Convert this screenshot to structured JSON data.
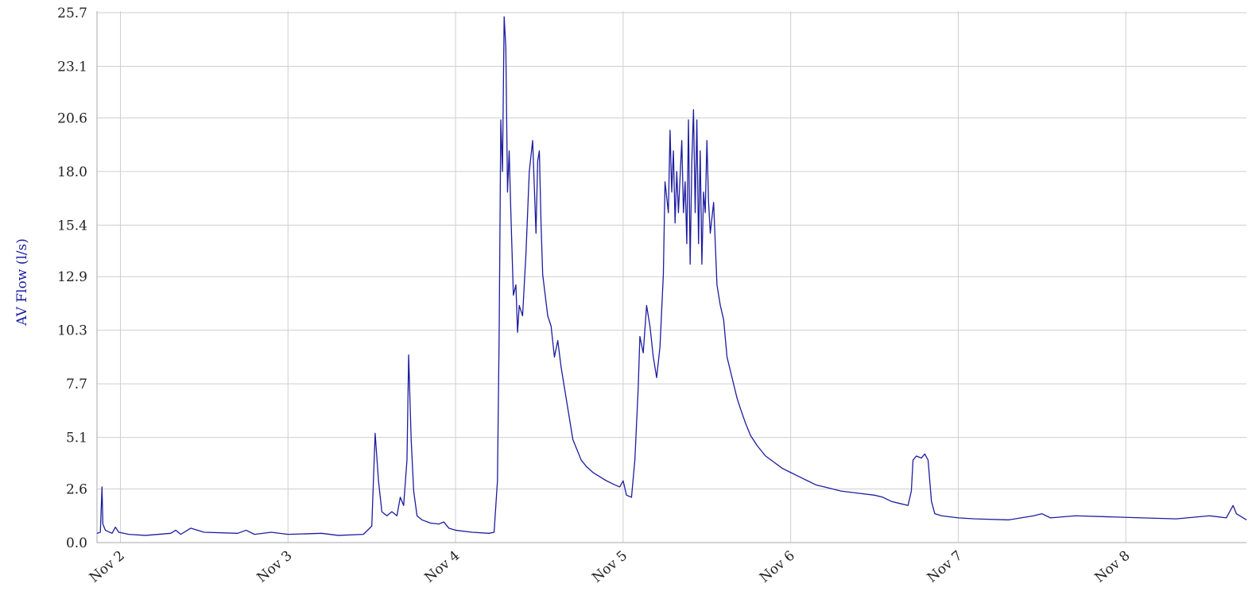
{
  "chart_data": {
    "type": "line",
    "ylabel": "AV Flow (l/s)",
    "xlabel": "",
    "title": "",
    "grid": true,
    "ylim": [
      0.0,
      25.7
    ],
    "xlim": [
      1.86,
      8.72
    ],
    "yticks": [
      "0.0",
      "2.6",
      "5.1",
      "7.7",
      "10.3",
      "12.9",
      "15.4",
      "18.0",
      "20.6",
      "23.1",
      "25.7"
    ],
    "xticks": [
      {
        "value": 2,
        "label": "Nov 2"
      },
      {
        "value": 3,
        "label": "Nov 3"
      },
      {
        "value": 4,
        "label": "Nov 4"
      },
      {
        "value": 5,
        "label": "Nov 5"
      },
      {
        "value": 6,
        "label": "Nov 6"
      },
      {
        "value": 7,
        "label": "Nov 7"
      },
      {
        "value": 8,
        "label": "Nov 8"
      }
    ],
    "series": [
      {
        "color": "#1c1ca0",
        "points": [
          [
            1.86,
            0.45
          ],
          [
            1.88,
            0.5
          ],
          [
            1.89,
            2.7
          ],
          [
            1.895,
            0.9
          ],
          [
            1.91,
            0.6
          ],
          [
            1.95,
            0.45
          ],
          [
            1.97,
            0.75
          ],
          [
            1.99,
            0.5
          ],
          [
            2.05,
            0.4
          ],
          [
            2.15,
            0.35
          ],
          [
            2.3,
            0.45
          ],
          [
            2.33,
            0.6
          ],
          [
            2.36,
            0.4
          ],
          [
            2.42,
            0.7
          ],
          [
            2.5,
            0.5
          ],
          [
            2.7,
            0.45
          ],
          [
            2.75,
            0.6
          ],
          [
            2.8,
            0.4
          ],
          [
            2.9,
            0.5
          ],
          [
            3.0,
            0.4
          ],
          [
            3.2,
            0.45
          ],
          [
            3.3,
            0.35
          ],
          [
            3.45,
            0.4
          ],
          [
            3.5,
            0.8
          ],
          [
            3.52,
            5.3
          ],
          [
            3.54,
            3.0
          ],
          [
            3.56,
            1.5
          ],
          [
            3.59,
            1.3
          ],
          [
            3.62,
            1.5
          ],
          [
            3.65,
            1.3
          ],
          [
            3.67,
            2.2
          ],
          [
            3.69,
            1.8
          ],
          [
            3.71,
            4.0
          ],
          [
            3.72,
            9.1
          ],
          [
            3.735,
            5.0
          ],
          [
            3.75,
            2.5
          ],
          [
            3.77,
            1.3
          ],
          [
            3.8,
            1.1
          ],
          [
            3.85,
            0.95
          ],
          [
            3.9,
            0.9
          ],
          [
            3.93,
            1.0
          ],
          [
            3.96,
            0.7
          ],
          [
            4.0,
            0.6
          ],
          [
            4.1,
            0.5
          ],
          [
            4.2,
            0.45
          ],
          [
            4.23,
            0.5
          ],
          [
            4.25,
            3.0
          ],
          [
            4.26,
            10.0
          ],
          [
            4.27,
            20.5
          ],
          [
            4.28,
            18.0
          ],
          [
            4.29,
            25.5
          ],
          [
            4.3,
            24.0
          ],
          [
            4.31,
            17.0
          ],
          [
            4.32,
            19.0
          ],
          [
            4.33,
            16.0
          ],
          [
            4.345,
            12.0
          ],
          [
            4.36,
            12.5
          ],
          [
            4.37,
            10.2
          ],
          [
            4.38,
            11.5
          ],
          [
            4.4,
            11.0
          ],
          [
            4.42,
            14.0
          ],
          [
            4.44,
            18.0
          ],
          [
            4.46,
            19.5
          ],
          [
            4.48,
            15.0
          ],
          [
            4.49,
            18.5
          ],
          [
            4.5,
            19.0
          ],
          [
            4.51,
            15.5
          ],
          [
            4.52,
            13.0
          ],
          [
            4.55,
            11.0
          ],
          [
            4.57,
            10.5
          ],
          [
            4.59,
            9.0
          ],
          [
            4.61,
            9.8
          ],
          [
            4.63,
            8.5
          ],
          [
            4.65,
            7.5
          ],
          [
            4.68,
            6.0
          ],
          [
            4.7,
            5.0
          ],
          [
            4.72,
            4.6
          ],
          [
            4.75,
            4.0
          ],
          [
            4.78,
            3.7
          ],
          [
            4.82,
            3.4
          ],
          [
            4.86,
            3.2
          ],
          [
            4.9,
            3.0
          ],
          [
            4.95,
            2.8
          ],
          [
            4.98,
            2.7
          ],
          [
            5.0,
            3.0
          ],
          [
            5.02,
            2.3
          ],
          [
            5.05,
            2.2
          ],
          [
            5.07,
            4.0
          ],
          [
            5.09,
            7.5
          ],
          [
            5.1,
            10.0
          ],
          [
            5.12,
            9.2
          ],
          [
            5.14,
            11.5
          ],
          [
            5.16,
            10.5
          ],
          [
            5.18,
            9.0
          ],
          [
            5.2,
            8.0
          ],
          [
            5.22,
            9.5
          ],
          [
            5.24,
            13.0
          ],
          [
            5.25,
            17.5
          ],
          [
            5.27,
            16.0
          ],
          [
            5.28,
            20.0
          ],
          [
            5.29,
            17.0
          ],
          [
            5.3,
            19.0
          ],
          [
            5.31,
            15.5
          ],
          [
            5.32,
            18.0
          ],
          [
            5.33,
            16.0
          ],
          [
            5.35,
            19.5
          ],
          [
            5.36,
            16.0
          ],
          [
            5.37,
            17.5
          ],
          [
            5.38,
            14.5
          ],
          [
            5.39,
            20.5
          ],
          [
            5.4,
            13.5
          ],
          [
            5.41,
            18.5
          ],
          [
            5.42,
            21.0
          ],
          [
            5.43,
            16.0
          ],
          [
            5.44,
            20.5
          ],
          [
            5.45,
            14.5
          ],
          [
            5.46,
            19.0
          ],
          [
            5.47,
            13.5
          ],
          [
            5.48,
            17.0
          ],
          [
            5.49,
            16.0
          ],
          [
            5.5,
            19.5
          ],
          [
            5.51,
            16.5
          ],
          [
            5.52,
            15.0
          ],
          [
            5.54,
            16.5
          ],
          [
            5.56,
            12.5
          ],
          [
            5.58,
            11.5
          ],
          [
            5.6,
            10.8
          ],
          [
            5.62,
            9.0
          ],
          [
            5.65,
            8.0
          ],
          [
            5.68,
            7.0
          ],
          [
            5.7,
            6.5
          ],
          [
            5.73,
            5.8
          ],
          [
            5.76,
            5.2
          ],
          [
            5.8,
            4.7
          ],
          [
            5.85,
            4.2
          ],
          [
            5.9,
            3.9
          ],
          [
            5.95,
            3.6
          ],
          [
            6.0,
            3.4
          ],
          [
            6.05,
            3.2
          ],
          [
            6.1,
            3.0
          ],
          [
            6.15,
            2.8
          ],
          [
            6.2,
            2.7
          ],
          [
            6.3,
            2.5
          ],
          [
            6.4,
            2.4
          ],
          [
            6.5,
            2.3
          ],
          [
            6.55,
            2.2
          ],
          [
            6.6,
            2.0
          ],
          [
            6.65,
            1.9
          ],
          [
            6.7,
            1.8
          ],
          [
            6.72,
            2.5
          ],
          [
            6.73,
            4.0
          ],
          [
            6.75,
            4.2
          ],
          [
            6.78,
            4.1
          ],
          [
            6.8,
            4.3
          ],
          [
            6.82,
            4.0
          ],
          [
            6.84,
            2.0
          ],
          [
            6.86,
            1.4
          ],
          [
            6.9,
            1.3
          ],
          [
            7.0,
            1.2
          ],
          [
            7.1,
            1.15
          ],
          [
            7.3,
            1.1
          ],
          [
            7.45,
            1.3
          ],
          [
            7.5,
            1.4
          ],
          [
            7.55,
            1.2
          ],
          [
            7.7,
            1.3
          ],
          [
            7.9,
            1.25
          ],
          [
            8.1,
            1.2
          ],
          [
            8.3,
            1.15
          ],
          [
            8.5,
            1.3
          ],
          [
            8.6,
            1.2
          ],
          [
            8.64,
            1.8
          ],
          [
            8.66,
            1.4
          ],
          [
            8.7,
            1.2
          ],
          [
            8.72,
            1.1
          ]
        ]
      }
    ]
  }
}
